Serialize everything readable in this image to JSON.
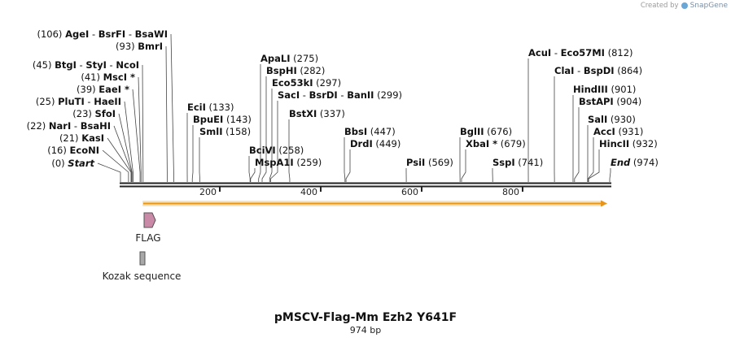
{
  "credit": {
    "prefix": "Created by",
    "brand": "SnapGene"
  },
  "map": {
    "title": "pMSCV-Flag-Mm Ezh2 Y641F",
    "length_label": "974 bp",
    "length": 974,
    "ticks": [
      "200",
      "400",
      "600",
      "800"
    ],
    "sites": [
      {
        "pos": 0,
        "names": [
          "Start"
        ],
        "pos_label": "(0)",
        "italic": true,
        "side": "left"
      },
      {
        "pos": 16,
        "names": [
          "EcoNI"
        ],
        "pos_label": "(16)",
        "side": "left"
      },
      {
        "pos": 21,
        "names": [
          "KasI"
        ],
        "pos_label": "(21)",
        "side": "left"
      },
      {
        "pos": 22,
        "names": [
          "NarI",
          "BsaHI"
        ],
        "pos_label": "(22)",
        "side": "left"
      },
      {
        "pos": 23,
        "names": [
          "SfoI"
        ],
        "pos_label": "(23)",
        "side": "left"
      },
      {
        "pos": 25,
        "names": [
          "PluTI",
          "HaeII"
        ],
        "pos_label": "(25)",
        "side": "left"
      },
      {
        "pos": 39,
        "names": [
          "EaeI *"
        ],
        "pos_label": "(39)",
        "side": "left"
      },
      {
        "pos": 41,
        "names": [
          "MscI *"
        ],
        "pos_label": "(41)",
        "side": "left"
      },
      {
        "pos": 45,
        "names": [
          "BtgI",
          "StyI",
          "NcoI"
        ],
        "pos_label": "(45)",
        "side": "left"
      },
      {
        "pos": 93,
        "names": [
          "BmrI"
        ],
        "pos_label": "(93)",
        "side": "left"
      },
      {
        "pos": 106,
        "names": [
          "AgeI",
          "BsrFI",
          "BsaWI"
        ],
        "pos_label": "(106)",
        "side": "left"
      },
      {
        "pos": 133,
        "names": [
          "EciI"
        ],
        "pos_label": "(133)",
        "side": "right"
      },
      {
        "pos": 143,
        "names": [
          "BpuEI"
        ],
        "pos_label": "(143)",
        "side": "right"
      },
      {
        "pos": 158,
        "names": [
          "SmlI"
        ],
        "pos_label": "(158)",
        "side": "right"
      },
      {
        "pos": 258,
        "names": [
          "BciVI"
        ],
        "pos_label": "(258)",
        "side": "right"
      },
      {
        "pos": 259,
        "names": [
          "MspA1I"
        ],
        "pos_label": "(259)",
        "side": "right"
      },
      {
        "pos": 275,
        "names": [
          "ApaLI"
        ],
        "pos_label": "(275)",
        "side": "right"
      },
      {
        "pos": 282,
        "names": [
          "BspHI"
        ],
        "pos_label": "(282)",
        "side": "right"
      },
      {
        "pos": 297,
        "names": [
          "Eco53kI"
        ],
        "pos_label": "(297)",
        "side": "right"
      },
      {
        "pos": 299,
        "names": [
          "SacI",
          "BsrDI",
          "BanII"
        ],
        "pos_label": "(299)",
        "side": "right"
      },
      {
        "pos": 337,
        "names": [
          "BstXI"
        ],
        "pos_label": "(337)",
        "side": "right"
      },
      {
        "pos": 447,
        "names": [
          "BbsI"
        ],
        "pos_label": "(447)",
        "side": "right"
      },
      {
        "pos": 449,
        "names": [
          "DrdI"
        ],
        "pos_label": "(449)",
        "side": "right"
      },
      {
        "pos": 569,
        "names": [
          "PsiI"
        ],
        "pos_label": "(569)",
        "side": "right"
      },
      {
        "pos": 676,
        "names": [
          "BglII"
        ],
        "pos_label": "(676)",
        "side": "right"
      },
      {
        "pos": 679,
        "names": [
          "XbaI *"
        ],
        "pos_label": "(679)",
        "side": "right"
      },
      {
        "pos": 741,
        "names": [
          "SspI"
        ],
        "pos_label": "(741)",
        "side": "right"
      },
      {
        "pos": 812,
        "names": [
          "AcuI",
          "Eco57MI"
        ],
        "pos_label": "(812)",
        "side": "right"
      },
      {
        "pos": 864,
        "names": [
          "ClaI",
          "BspDI"
        ],
        "pos_label": "(864)",
        "side": "right"
      },
      {
        "pos": 901,
        "names": [
          "HindIII"
        ],
        "pos_label": "(901)",
        "side": "right"
      },
      {
        "pos": 904,
        "names": [
          "BstAPI"
        ],
        "pos_label": "(904)",
        "side": "right"
      },
      {
        "pos": 930,
        "names": [
          "SalI"
        ],
        "pos_label": "(930)",
        "side": "right"
      },
      {
        "pos": 931,
        "names": [
          "AccI"
        ],
        "pos_label": "(931)",
        "side": "right"
      },
      {
        "pos": 932,
        "names": [
          "HincII"
        ],
        "pos_label": "(932)",
        "side": "right"
      },
      {
        "pos": 974,
        "names": [
          "End"
        ],
        "pos_label": "(974)",
        "italic": true,
        "side": "right"
      }
    ],
    "features": [
      {
        "name": "FLAG",
        "color": "#c88aa6",
        "kind": "arrow"
      },
      {
        "name": "Kozak sequence",
        "color": "#a8a8a8",
        "kind": "box"
      }
    ],
    "orf_color": "#f5a623"
  }
}
